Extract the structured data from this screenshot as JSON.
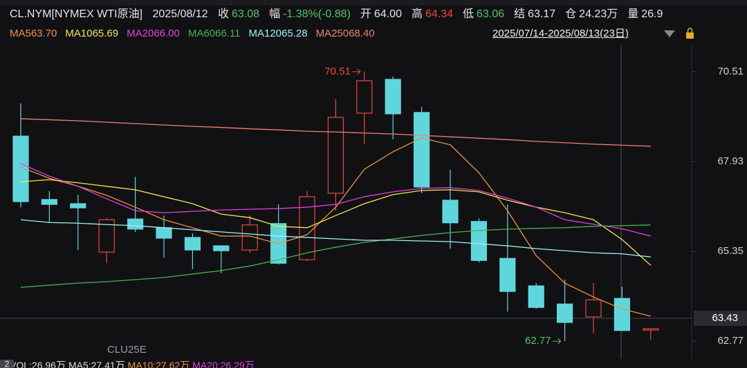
{
  "header": {
    "symbol": "CL.NYM[NYMEX WTI原油]",
    "date": "2025/08/12",
    "items": [
      {
        "label": "收",
        "value": "63.08",
        "color": "#4cc765"
      },
      {
        "label": "幅",
        "value": "-1.38%(-0.88)",
        "color": "#4cc765"
      },
      {
        "label": "开",
        "value": "64.00",
        "color": "#e6e6e6"
      },
      {
        "label": "高",
        "value": "64.34",
        "color": "#e8493f"
      },
      {
        "label": "低",
        "value": "63.06",
        "color": "#4cc765"
      },
      {
        "label": "结",
        "value": "63.17",
        "color": "#e6e6e6"
      },
      {
        "label": "仓",
        "value": "24.23万",
        "color": "#e6e6e6"
      },
      {
        "label": "量",
        "value": "26.9",
        "color": "#e6e6e6"
      }
    ]
  },
  "range_label": "2025/07/14-2025/08/13(23日)",
  "footer": {
    "badge": "2",
    "texts": [
      {
        "text": "VOL:26.96万",
        "color": "#dddddd"
      },
      {
        "text": "MA5:27.41万",
        "color": "#dddddd"
      },
      {
        "text": "MA10:27.62万",
        "color": "#f0943c"
      },
      {
        "text": "MA20:26.29万",
        "color": "#e040e0"
      }
    ]
  },
  "chart_data": {
    "type": "candlestick",
    "contract_label": "CLU25E",
    "categories": [
      null,
      null,
      null,
      null,
      null,
      null,
      null,
      null,
      null,
      null,
      null,
      null,
      null,
      null,
      null,
      null,
      null,
      null,
      null,
      null,
      null,
      null,
      null
    ],
    "candles": {
      "up_color": "#e8493f",
      "down_color": "#5fd6dc",
      "open": [
        68.66,
        66.84,
        66.72,
        65.33,
        66.28,
        66.03,
        65.75,
        65.51,
        65.39,
        66.15,
        65.11,
        67.02,
        69.32,
        70.29,
        69.34,
        66.82,
        66.21,
        65.15,
        64.36,
        63.84,
        63.47,
        64.0,
        63.09
      ],
      "high": [
        69.6,
        67.08,
        66.98,
        66.3,
        67.49,
        66.38,
        65.87,
        65.51,
        66.38,
        66.7,
        67.08,
        69.72,
        70.51,
        70.37,
        69.5,
        67.69,
        66.3,
        66.7,
        64.44,
        64.54,
        64.44,
        64.34,
        63.13
      ],
      "low": [
        66.62,
        66.18,
        65.39,
        65.01,
        65.91,
        65.17,
        64.84,
        64.72,
        65.31,
        64.97,
        65.07,
        66.52,
        68.43,
        68.57,
        67.02,
        65.43,
        65.03,
        63.62,
        63.7,
        62.77,
        63.0,
        63.06,
        62.81
      ],
      "close": [
        66.78,
        66.7,
        66.6,
        66.26,
        65.99,
        65.73,
        65.39,
        65.37,
        66.11,
        65.01,
        66.92,
        69.2,
        70.25,
        69.3,
        67.2,
        66.17,
        65.09,
        64.2,
        63.74,
        63.31,
        63.96,
        63.08,
        63.13
      ]
    },
    "series": [
      {
        "name": "MA5",
        "legend_value": "63.70",
        "color": "#f0943c",
        "values": [
          67.77,
          67.45,
          67.22,
          66.96,
          66.62,
          66.26,
          66.03,
          65.79,
          65.79,
          65.57,
          65.83,
          66.62,
          67.71,
          68.21,
          68.61,
          68.41,
          67.61,
          66.52,
          65.23,
          64.44,
          64.04,
          63.7,
          63.49
        ]
      },
      {
        "name": "MA10",
        "legend_value": "65.69",
        "color": "#f2e84a",
        "values": [
          67.35,
          67.41,
          67.32,
          67.22,
          67.12,
          66.92,
          66.72,
          66.42,
          66.32,
          66.07,
          66.03,
          66.38,
          66.72,
          66.98,
          67.1,
          67.12,
          67.06,
          66.82,
          66.62,
          66.46,
          66.26,
          65.69,
          64.95
        ]
      },
      {
        "name": "MA20",
        "legend_value": "66.00",
        "color": "#e040e0",
        "values": [
          67.87,
          67.51,
          67.22,
          66.86,
          66.52,
          66.46,
          66.5,
          66.54,
          66.56,
          66.58,
          66.62,
          66.7,
          66.92,
          67.06,
          67.16,
          67.18,
          67.1,
          66.88,
          66.62,
          66.26,
          66.13,
          66.0,
          65.79
        ]
      },
      {
        "name": "MA60",
        "legend_value": "66.11",
        "color": "#4caf50",
        "values": [
          64.32,
          64.38,
          64.44,
          64.48,
          64.54,
          64.6,
          64.7,
          64.8,
          64.93,
          65.11,
          65.31,
          65.47,
          65.61,
          65.71,
          65.81,
          65.89,
          65.95,
          65.99,
          66.01,
          66.03,
          66.07,
          66.09,
          66.11
        ]
      },
      {
        "name": "MA120",
        "legend_value": "65.28",
        "color": "#9ff2f2",
        "values": [
          66.26,
          66.18,
          66.16,
          66.12,
          66.09,
          66.03,
          65.97,
          65.91,
          65.85,
          65.79,
          65.75,
          65.71,
          65.67,
          65.67,
          65.65,
          65.63,
          65.57,
          65.51,
          65.43,
          65.37,
          65.31,
          65.28,
          65.19
        ]
      },
      {
        "name": "MA250",
        "legend_value": "68.40",
        "color": "#f08070",
        "values": [
          69.16,
          69.13,
          69.1,
          69.06,
          69.02,
          68.98,
          68.94,
          68.91,
          68.87,
          68.84,
          68.8,
          68.78,
          68.75,
          68.72,
          68.68,
          68.64,
          68.6,
          68.56,
          68.51,
          68.47,
          68.43,
          68.4,
          68.37
        ]
      }
    ],
    "high_marker": 70.51,
    "low_marker": 62.77,
    "last_price": 63.43,
    "ylim": [
      62.26,
      71.28
    ],
    "yticks": [
      62.77,
      65.35,
      67.93,
      70.51
    ]
  }
}
